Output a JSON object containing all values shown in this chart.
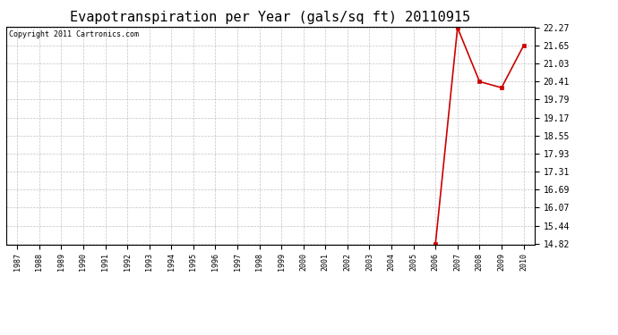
{
  "title": "Evapotranspiration per Year (gals/sq ft) 20110915",
  "copyright_text": "Copyright 2011 Cartronics.com",
  "years": [
    1987,
    1988,
    1989,
    1990,
    1991,
    1992,
    1993,
    1994,
    1995,
    1996,
    1997,
    1998,
    1999,
    2000,
    2001,
    2002,
    2003,
    2004,
    2005,
    2006,
    2007,
    2008,
    2009,
    2010
  ],
  "values": [
    null,
    null,
    null,
    null,
    null,
    null,
    null,
    null,
    null,
    null,
    null,
    null,
    null,
    null,
    null,
    null,
    null,
    null,
    null,
    14.82,
    22.27,
    20.41,
    20.2,
    21.65
  ],
  "line_color": "#cc0000",
  "marker_color": "#cc0000",
  "bg_color": "#ffffff",
  "plot_bg_color": "#ffffff",
  "grid_color": "#aaaaaa",
  "yticks": [
    14.82,
    15.44,
    16.07,
    16.69,
    17.31,
    17.93,
    18.55,
    19.17,
    19.79,
    20.41,
    21.03,
    21.65,
    22.27
  ],
  "ylim": [
    14.82,
    22.27
  ],
  "title_fontsize": 11,
  "copyright_fontsize": 6,
  "xtick_fontsize": 6,
  "ytick_fontsize": 7
}
